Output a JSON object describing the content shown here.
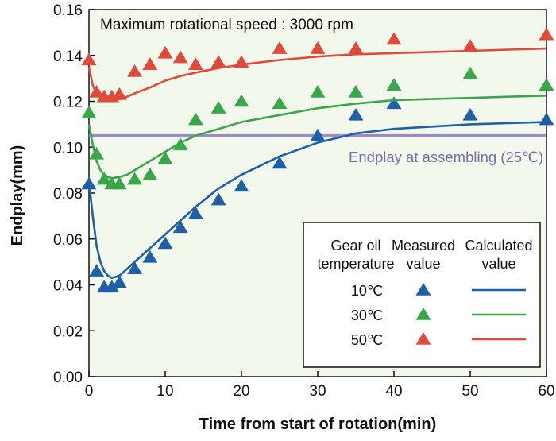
{
  "chart_data": {
    "type": "line",
    "title": "",
    "xlabel": "Time from start of rotation(min)",
    "ylabel": "Endplay(mm)",
    "xlim": [
      0,
      60
    ],
    "ylim": [
      0,
      0.16
    ],
    "x_ticks": [
      "0",
      "10",
      "20",
      "30",
      "40",
      "50",
      "60"
    ],
    "y_ticks": [
      "0.00",
      "0.02",
      "0.04",
      "0.06",
      "0.08",
      "0.10",
      "0.12",
      "0.14",
      "0.16"
    ],
    "annotation": "Maximum rotational speed : 3000 rpm",
    "reference_line": {
      "y": 0.105,
      "label": "Endplay at assembling (25℃)",
      "color": "#9b8cc4"
    },
    "legend": {
      "position": "bottom-right",
      "col_temp": [
        "Gear oil",
        "temperature"
      ],
      "col_measured": [
        "Measured",
        "value"
      ],
      "col_calc": [
        "Calculated",
        "value"
      ]
    },
    "series": [
      {
        "name": "10℃",
        "color": "#1f5fa8",
        "measured_x": [
          0,
          1,
          2,
          3,
          4,
          6,
          8,
          10,
          12,
          14,
          17,
          20,
          25,
          30,
          35,
          40,
          50,
          60
        ],
        "measured_y": [
          0.084,
          0.046,
          0.039,
          0.039,
          0.041,
          0.047,
          0.052,
          0.058,
          0.065,
          0.071,
          0.077,
          0.083,
          0.093,
          0.105,
          0.114,
          0.119,
          0.114,
          0.112
        ],
        "calc_x": [
          0,
          0.5,
          1,
          1.5,
          2,
          2.5,
          3,
          4,
          5,
          6,
          8,
          10,
          12,
          14,
          17,
          20,
          25,
          30,
          35,
          40,
          45,
          50,
          55,
          60
        ],
        "calc_y": [
          0.085,
          0.07,
          0.057,
          0.05,
          0.046,
          0.044,
          0.043,
          0.044,
          0.047,
          0.05,
          0.056,
          0.062,
          0.068,
          0.074,
          0.082,
          0.088,
          0.096,
          0.102,
          0.106,
          0.108,
          0.109,
          0.11,
          0.1105,
          0.111
        ]
      },
      {
        "name": "30℃",
        "color": "#3aa64a",
        "measured_x": [
          0,
          1,
          2,
          3,
          4,
          6,
          8,
          10,
          12,
          14,
          17,
          20,
          25,
          30,
          35,
          40,
          50,
          60
        ],
        "measured_y": [
          0.115,
          0.097,
          0.086,
          0.084,
          0.084,
          0.086,
          0.088,
          0.095,
          0.101,
          0.112,
          0.117,
          0.12,
          0.119,
          0.124,
          0.124,
          0.127,
          0.132,
          0.127
        ],
        "calc_x": [
          0,
          0.5,
          1,
          1.5,
          2,
          2.5,
          3,
          4,
          5,
          6,
          8,
          10,
          12,
          14,
          17,
          20,
          25,
          30,
          35,
          40,
          45,
          50,
          55,
          60
        ],
        "calc_y": [
          0.11,
          0.101,
          0.094,
          0.09,
          0.088,
          0.087,
          0.0865,
          0.087,
          0.088,
          0.09,
          0.094,
          0.098,
          0.102,
          0.105,
          0.108,
          0.111,
          0.114,
          0.117,
          0.119,
          0.1205,
          0.121,
          0.1215,
          0.122,
          0.1225
        ]
      },
      {
        "name": "50℃",
        "color": "#e04a3a",
        "measured_x": [
          0,
          1,
          2,
          3,
          4,
          6,
          8,
          10,
          12,
          14,
          17,
          20,
          25,
          30,
          35,
          40,
          50,
          60
        ],
        "measured_y": [
          0.138,
          0.124,
          0.122,
          0.122,
          0.123,
          0.133,
          0.136,
          0.141,
          0.139,
          0.136,
          0.137,
          0.137,
          0.143,
          0.143,
          0.143,
          0.147,
          0.144,
          0.149
        ],
        "calc_x": [
          0,
          0.5,
          1,
          1.5,
          2,
          2.5,
          3,
          4,
          5,
          6,
          8,
          10,
          12,
          14,
          17,
          20,
          25,
          30,
          35,
          40,
          45,
          50,
          55,
          60
        ],
        "calc_y": [
          0.135,
          0.127,
          0.123,
          0.1215,
          0.121,
          0.1205,
          0.1205,
          0.121,
          0.122,
          0.1235,
          0.126,
          0.129,
          0.131,
          0.1325,
          0.1345,
          0.136,
          0.138,
          0.1395,
          0.1405,
          0.141,
          0.1415,
          0.142,
          0.1425,
          0.143
        ]
      }
    ]
  }
}
